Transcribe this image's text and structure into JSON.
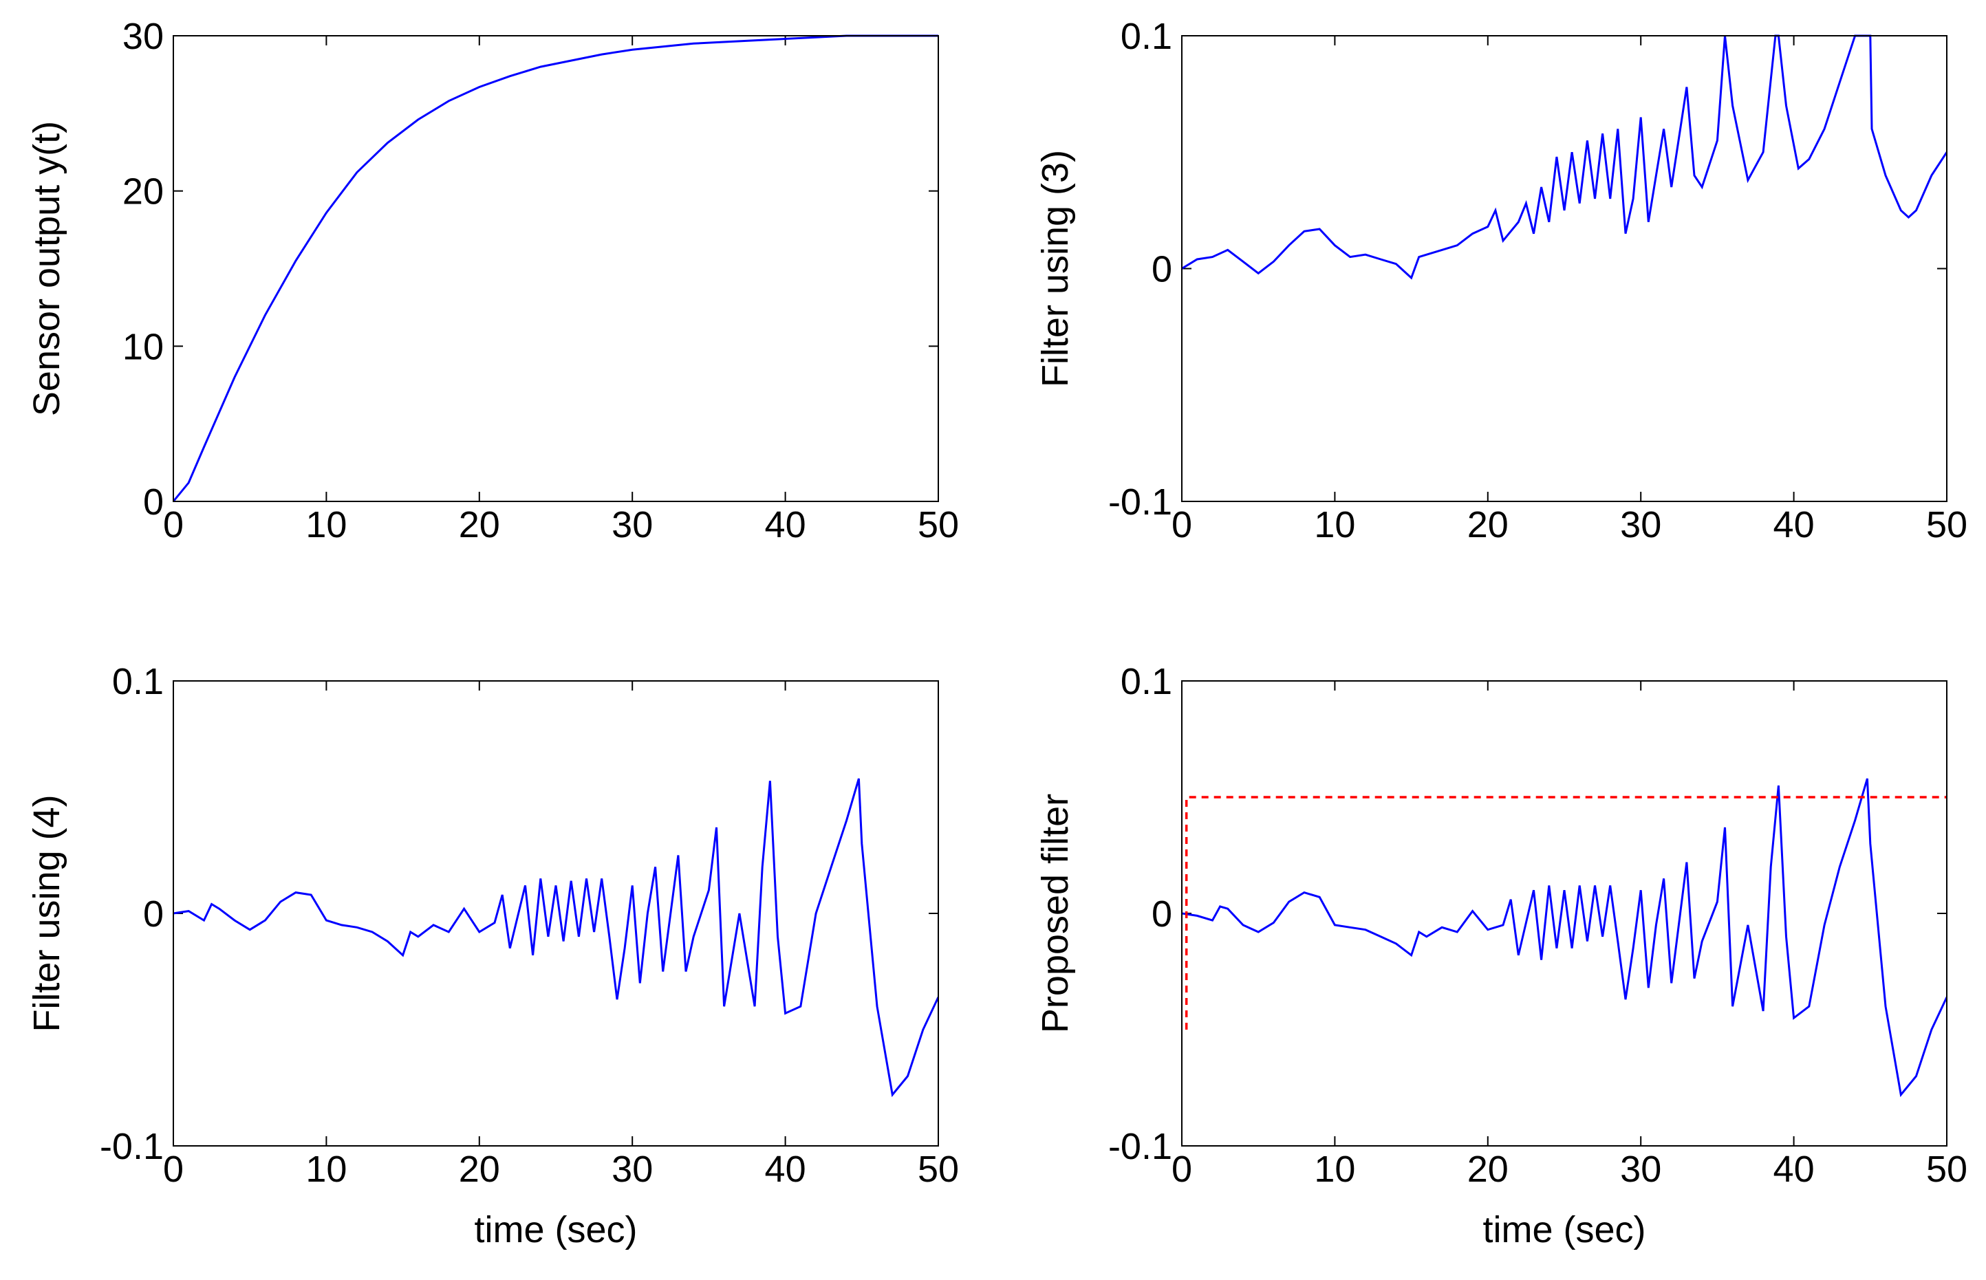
{
  "chart_data": [
    {
      "type": "line",
      "ylabel": "Sensor output y(t)",
      "xlim": [
        0,
        50
      ],
      "xticks": [
        0,
        10,
        20,
        30,
        40,
        50
      ],
      "ylim": [
        0,
        30
      ],
      "yticks": [
        0,
        10,
        20,
        30
      ],
      "series": [
        {
          "color": "#0000ff",
          "x": [
            0,
            1,
            2,
            4,
            6,
            8,
            10,
            12,
            14,
            16,
            18,
            20,
            22,
            24,
            26,
            28,
            30,
            32,
            34,
            36,
            38,
            40,
            42,
            44,
            46,
            48,
            50
          ],
          "values": [
            0,
            1.2,
            3.5,
            8,
            12,
            15.5,
            18.6,
            21.2,
            23.1,
            24.6,
            25.8,
            26.7,
            27.4,
            28,
            28.4,
            28.8,
            29.1,
            29.3,
            29.5,
            29.6,
            29.7,
            29.8,
            29.9,
            30,
            30,
            30,
            30
          ]
        }
      ]
    },
    {
      "type": "line",
      "ylabel": "Filter using (3)",
      "xlim": [
        0,
        50
      ],
      "xticks": [
        0,
        10,
        20,
        30,
        40,
        50
      ],
      "ylim": [
        -0.1,
        0.1
      ],
      "yticks": [
        -0.1,
        0,
        0.1
      ],
      "series": [
        {
          "color": "#0000ff",
          "x": [
            0,
            1,
            2,
            3,
            4,
            5,
            6,
            7,
            8,
            9,
            10,
            11,
            12,
            13,
            14,
            15,
            15.5,
            16,
            17,
            18,
            19,
            20,
            20.5,
            21,
            22,
            22.5,
            23,
            23.5,
            24,
            24.5,
            25,
            25.5,
            26,
            26.5,
            27,
            27.5,
            28,
            28.5,
            29,
            29.5,
            30,
            30.5,
            31,
            31.5,
            32,
            33,
            33.5,
            34,
            35,
            35.5,
            36,
            37,
            38,
            38.8,
            39,
            39.5,
            40.3,
            41,
            42,
            43,
            44,
            45,
            45.1,
            46,
            47,
            47.5,
            48,
            49,
            50
          ],
          "values": [
            0,
            0.004,
            0.005,
            0.008,
            0.003,
            -0.002,
            0.003,
            0.01,
            0.016,
            0.017,
            0.01,
            0.005,
            0.006,
            0.004,
            0.002,
            -0.004,
            0.005,
            0.006,
            0.008,
            0.01,
            0.015,
            0.018,
            0.025,
            0.012,
            0.02,
            0.028,
            0.015,
            0.035,
            0.02,
            0.048,
            0.025,
            0.05,
            0.028,
            0.055,
            0.03,
            0.058,
            0.03,
            0.06,
            0.015,
            0.03,
            0.065,
            0.02,
            0.04,
            0.06,
            0.035,
            0.078,
            0.04,
            0.035,
            0.055,
            0.1,
            0.07,
            0.038,
            0.05,
            0.1,
            0.1,
            0.07,
            0.043,
            0.047,
            0.06,
            0.08,
            0.1,
            0.1,
            0.06,
            0.04,
            0.025,
            0.022,
            0.025,
            0.04,
            0.05
          ]
        }
      ]
    },
    {
      "type": "line",
      "ylabel": "Filter using (4)",
      "xlabel": "time (sec)",
      "xlim": [
        0,
        50
      ],
      "xticks": [
        0,
        10,
        20,
        30,
        40,
        50
      ],
      "ylim": [
        -0.1,
        0.1
      ],
      "yticks": [
        -0.1,
        0,
        0.1
      ],
      "series": [
        {
          "color": "#0000ff",
          "x": [
            0,
            1,
            2,
            2.5,
            3,
            4,
            5,
            6,
            7,
            8,
            9,
            10,
            11,
            12,
            13,
            14,
            15,
            15.5,
            16,
            17,
            18,
            19,
            20,
            21,
            21.5,
            22,
            23,
            23.5,
            24,
            24.5,
            25,
            25.5,
            26,
            26.5,
            27,
            27.5,
            28,
            28.5,
            29,
            29.5,
            30,
            30.5,
            31,
            31.5,
            32,
            33,
            33.5,
            34,
            35,
            35.5,
            36,
            37,
            38,
            38.5,
            39,
            39.5,
            40,
            41,
            42,
            43,
            44,
            44.8,
            45,
            46,
            47,
            48,
            49,
            50
          ],
          "values": [
            0,
            0.001,
            -0.003,
            0.004,
            0.002,
            -0.003,
            -0.007,
            -0.003,
            0.005,
            0.009,
            0.008,
            -0.003,
            -0.005,
            -0.006,
            -0.008,
            -0.012,
            -0.018,
            -0.008,
            -0.01,
            -0.005,
            -0.008,
            0.002,
            -0.008,
            -0.004,
            0.008,
            -0.015,
            0.012,
            -0.018,
            0.015,
            -0.01,
            0.012,
            -0.012,
            0.014,
            -0.01,
            0.015,
            -0.008,
            0.015,
            -0.01,
            -0.037,
            -0.015,
            0.012,
            -0.03,
            0,
            0.02,
            -0.025,
            0.025,
            -0.025,
            -0.01,
            0.01,
            0.037,
            -0.04,
            0,
            -0.04,
            0.02,
            0.057,
            -0.01,
            -0.043,
            -0.04,
            0,
            0.02,
            0.04,
            0.058,
            0.03,
            -0.04,
            -0.078,
            -0.07,
            -0.05,
            -0.036
          ]
        }
      ]
    },
    {
      "type": "line",
      "ylabel": "Proposed filter",
      "xlabel": "time (sec)",
      "xlim": [
        0,
        50
      ],
      "xticks": [
        0,
        10,
        20,
        30,
        40,
        50
      ],
      "ylim": [
        -0.1,
        0.1
      ],
      "yticks": [
        -0.1,
        0,
        0.1
      ],
      "series": [
        {
          "color": "#0000ff",
          "x": [
            0,
            1,
            2,
            2.5,
            3,
            4,
            5,
            6,
            7,
            8,
            9,
            10,
            11,
            12,
            13,
            14,
            15,
            15.5,
            16,
            17,
            18,
            19,
            20,
            21,
            21.5,
            22,
            23,
            23.5,
            24,
            24.5,
            25,
            25.5,
            26,
            26.5,
            27,
            27.5,
            28,
            28.5,
            29,
            29.5,
            30,
            30.5,
            31,
            31.5,
            32,
            33,
            33.5,
            34,
            35,
            35.5,
            36,
            37,
            38,
            38.5,
            39,
            39.5,
            40,
            41,
            42,
            43,
            44,
            44.8,
            45,
            46,
            47,
            48,
            49,
            50
          ],
          "values": [
            0,
            -0.001,
            -0.003,
            0.003,
            0.002,
            -0.005,
            -0.008,
            -0.004,
            0.005,
            0.009,
            0.007,
            -0.005,
            -0.006,
            -0.007,
            -0.01,
            -0.013,
            -0.018,
            -0.008,
            -0.01,
            -0.006,
            -0.008,
            0.001,
            -0.007,
            -0.005,
            0.006,
            -0.018,
            0.01,
            -0.02,
            0.012,
            -0.015,
            0.01,
            -0.015,
            0.012,
            -0.012,
            0.012,
            -0.01,
            0.012,
            -0.012,
            -0.037,
            -0.015,
            0.01,
            -0.032,
            -0.005,
            0.015,
            -0.03,
            0.022,
            -0.028,
            -0.012,
            0.005,
            0.037,
            -0.04,
            -0.005,
            -0.042,
            0.02,
            0.055,
            -0.01,
            -0.045,
            -0.04,
            -0.005,
            0.02,
            0.04,
            0.058,
            0.03,
            -0.04,
            -0.078,
            -0.07,
            -0.05,
            -0.036
          ]
        },
        {
          "color": "#ff0000",
          "dashed": true,
          "x": [
            0.3,
            0.3,
            50
          ],
          "values": [
            -0.05,
            0.05,
            0.05
          ]
        }
      ]
    }
  ]
}
